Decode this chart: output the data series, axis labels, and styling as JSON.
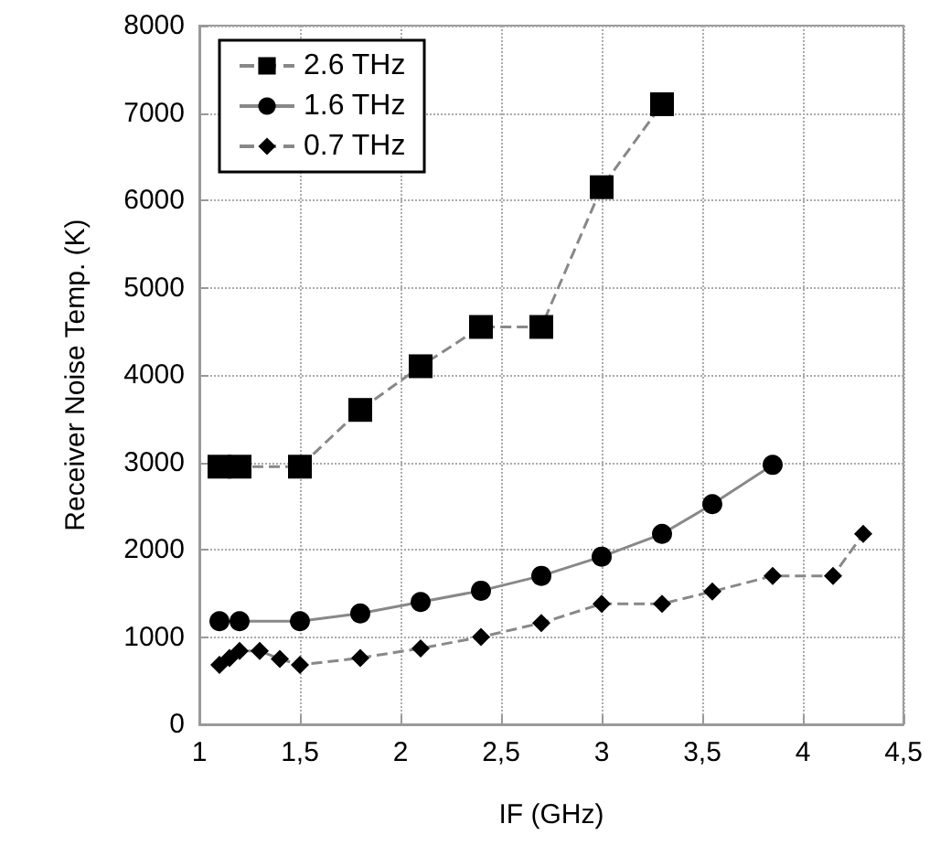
{
  "chart_data": {
    "type": "line",
    "xlabel": "IF (GHz)",
    "ylabel": "Receiver Noise Temp. (K)",
    "xlim": [
      1,
      4.5
    ],
    "xticks": [
      1,
      {
        "value": 1.5,
        "label": "1,5"
      },
      2,
      {
        "value": 2.5,
        "label": "2,5"
      },
      3,
      {
        "value": 3.5,
        "label": "3,5"
      },
      4,
      {
        "value": 4.5,
        "label": "4,5"
      }
    ],
    "ylim": [
      0,
      8000
    ],
    "yticks": [
      0,
      1000,
      2000,
      3000,
      4000,
      5000,
      6000,
      7000,
      8000
    ],
    "grid": true,
    "legend": "top left",
    "series": [
      {
        "name": "2.6 THz",
        "color": "#000000",
        "marker": "square",
        "line_style": "dashed",
        "x": [
          1.1,
          1.2,
          1.5,
          1.8,
          2.1,
          2.4,
          2.7,
          3.0,
          3.3
        ],
        "values": [
          2950,
          2950,
          2950,
          3600,
          4100,
          4550,
          4550,
          6150,
          7100
        ]
      },
      {
        "name": "1.6 THz",
        "color": "#000000",
        "marker": "circle",
        "line_style": "solid",
        "x": [
          1.1,
          1.2,
          1.5,
          1.8,
          2.1,
          2.4,
          2.7,
          3.0,
          3.3,
          3.55,
          3.85
        ],
        "values": [
          1180,
          1180,
          1180,
          1270,
          1400,
          1530,
          1700,
          1920,
          2180,
          2520,
          2970
        ]
      },
      {
        "name": "0.7 THz",
        "color": "#000000",
        "marker": "diamond",
        "line_style": "dashed",
        "x": [
          1.1,
          1.15,
          1.2,
          1.3,
          1.4,
          1.5,
          1.8,
          2.1,
          2.4,
          2.7,
          3.0,
          3.3,
          3.55,
          3.85,
          4.15,
          4.3
        ],
        "values": [
          680,
          760,
          840,
          840,
          750,
          680,
          760,
          870,
          1000,
          1160,
          1380,
          1380,
          1520,
          1700,
          1700,
          2180
        ]
      }
    ]
  }
}
